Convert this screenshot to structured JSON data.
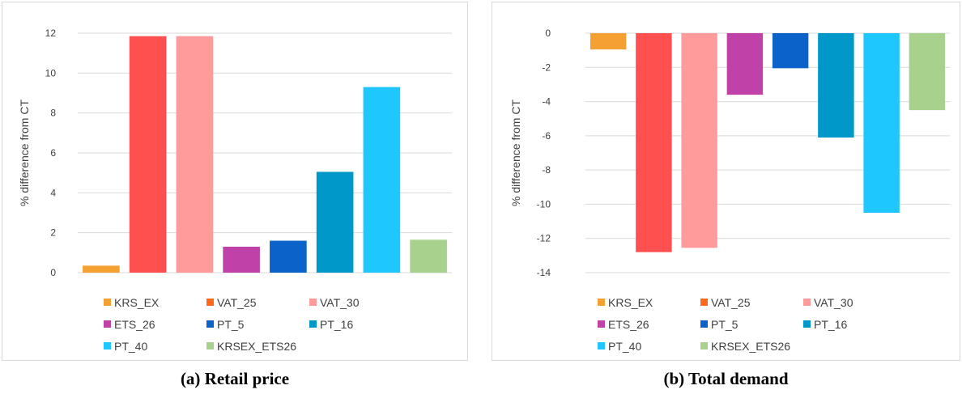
{
  "charts": [
    {
      "caption": "(a) Retail price",
      "chart_data": {
        "type": "bar",
        "title": "",
        "ylabel": "% difference from CT",
        "xlabel": "",
        "ylim": [
          0,
          12
        ],
        "yticks": [
          0,
          2,
          4,
          6,
          8,
          10,
          12
        ],
        "grid": true,
        "legend_position": "bottom",
        "categories": [
          "KRS_EX",
          "VAT_25",
          "VAT_30",
          "ETS_26",
          "PT_5",
          "PT_16",
          "PT_40",
          "KRSEX_ETS26"
        ],
        "values": [
          0.35,
          11.85,
          11.85,
          1.3,
          1.6,
          5.05,
          9.3,
          1.65
        ],
        "colors": [
          "#f5a033",
          "#ff5050",
          "#ff9b9b",
          "#c042a8",
          "#0b63c9",
          "#0098c8",
          "#1ec8ff",
          "#a9d18e"
        ],
        "legend_colors": [
          "#f5a033",
          "#ff6a1a",
          "#ff9b9b",
          "#c042a8",
          "#0b63c9",
          "#0098c8",
          "#1ec8ff",
          "#a9d18e"
        ]
      }
    },
    {
      "caption": "(b) Total demand",
      "chart_data": {
        "type": "bar",
        "title": "",
        "ylabel": "% difference from CT",
        "xlabel": "",
        "ylim": [
          -14,
          0
        ],
        "yticks": [
          0,
          -2,
          -4,
          -6,
          -8,
          -10,
          -12,
          -14
        ],
        "grid": true,
        "legend_position": "bottom",
        "categories": [
          "KRS_EX",
          "VAT_25",
          "VAT_30",
          "ETS_26",
          "PT_5",
          "PT_16",
          "PT_40",
          "KRSEX_ETS26"
        ],
        "values": [
          -0.95,
          -12.8,
          -12.55,
          -3.6,
          -2.05,
          -6.1,
          -10.5,
          -4.5
        ],
        "colors": [
          "#f5a033",
          "#ff5050",
          "#ff9b9b",
          "#c042a8",
          "#0b63c9",
          "#0098c8",
          "#1ec8ff",
          "#a9d18e"
        ],
        "legend_colors": [
          "#f5a033",
          "#ff6a1a",
          "#ff9b9b",
          "#c042a8",
          "#0b63c9",
          "#0098c8",
          "#1ec8ff",
          "#a9d18e"
        ]
      }
    }
  ]
}
